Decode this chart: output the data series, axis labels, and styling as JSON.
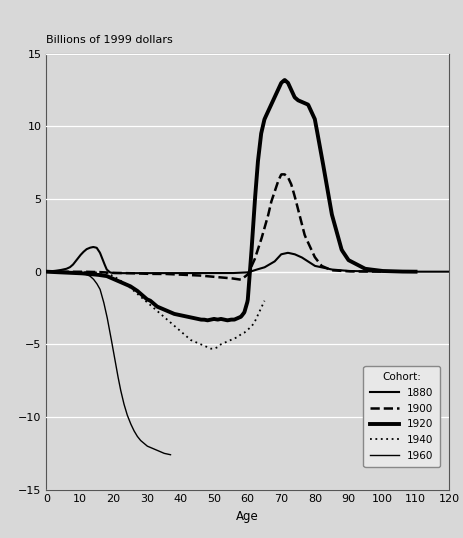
{
  "title": "Billions of 1999 dollars",
  "xlabel": "Age",
  "ylabel": "",
  "xlim": [
    0,
    120
  ],
  "ylim": [
    -15,
    15
  ],
  "xticks": [
    0,
    10,
    20,
    30,
    40,
    50,
    60,
    70,
    80,
    90,
    100,
    110,
    120
  ],
  "yticks": [
    -15,
    -10,
    -5,
    0,
    5,
    10,
    15
  ],
  "background_color": "#d8d8d8",
  "cohort_1880": {
    "ages": [
      0,
      1,
      2,
      3,
      4,
      5,
      6,
      7,
      8,
      9,
      10,
      11,
      12,
      13,
      14,
      15,
      16,
      17,
      18,
      19,
      20,
      22,
      25,
      28,
      30,
      35,
      40,
      45,
      50,
      55,
      60,
      62,
      65,
      68,
      70,
      72,
      74,
      76,
      78,
      80,
      85,
      90,
      95,
      100,
      105,
      110,
      115,
      120
    ],
    "values": [
      0,
      0.02,
      0.04,
      0.07,
      0.1,
      0.15,
      0.2,
      0.3,
      0.5,
      0.8,
      1.1,
      1.35,
      1.55,
      1.65,
      1.7,
      1.65,
      1.3,
      0.7,
      0.15,
      -0.05,
      -0.1,
      -0.1,
      -0.1,
      -0.1,
      -0.1,
      -0.1,
      -0.1,
      -0.1,
      -0.1,
      -0.1,
      -0.05,
      0.1,
      0.3,
      0.7,
      1.2,
      1.3,
      1.2,
      1.0,
      0.7,
      0.4,
      0.15,
      0.05,
      0.02,
      0.01,
      0,
      0,
      0,
      0
    ],
    "style": "solid",
    "linewidth": 1.5,
    "color": "#000000"
  },
  "cohort_1900": {
    "ages": [
      0,
      5,
      10,
      15,
      18,
      20,
      25,
      30,
      35,
      40,
      45,
      50,
      55,
      58,
      60,
      62,
      64,
      65,
      66,
      67,
      68,
      69,
      70,
      71,
      72,
      73,
      74,
      75,
      77,
      80,
      82,
      85,
      90,
      95,
      100,
      105,
      110
    ],
    "values": [
      0,
      0,
      0,
      -0.02,
      -0.05,
      -0.08,
      -0.1,
      -0.15,
      -0.15,
      -0.2,
      -0.25,
      -0.35,
      -0.45,
      -0.55,
      -0.2,
      0.8,
      2.2,
      3.0,
      3.8,
      4.8,
      5.5,
      6.2,
      6.7,
      6.7,
      6.5,
      6.0,
      5.2,
      4.3,
      2.5,
      1.0,
      0.4,
      0.1,
      0.02,
      0.01,
      0,
      0,
      0
    ],
    "style": "dashed",
    "linewidth": 1.8,
    "color": "#000000"
  },
  "cohort_1920": {
    "ages": [
      0,
      5,
      10,
      15,
      18,
      20,
      22,
      24,
      25,
      26,
      27,
      28,
      29,
      30,
      31,
      32,
      33,
      34,
      35,
      36,
      37,
      38,
      39,
      40,
      41,
      42,
      43,
      44,
      45,
      46,
      47,
      48,
      49,
      50,
      51,
      52,
      53,
      54,
      55,
      56,
      57,
      58,
      59,
      60,
      61,
      62,
      63,
      64,
      65,
      66,
      67,
      68,
      69,
      70,
      71,
      72,
      73,
      74,
      75,
      76,
      77,
      78,
      80,
      82,
      85,
      88,
      90,
      95,
      100,
      105,
      110
    ],
    "values": [
      0,
      -0.05,
      -0.1,
      -0.2,
      -0.3,
      -0.5,
      -0.7,
      -0.9,
      -1.0,
      -1.15,
      -1.3,
      -1.5,
      -1.7,
      -1.9,
      -2.0,
      -2.2,
      -2.4,
      -2.5,
      -2.6,
      -2.7,
      -2.8,
      -2.9,
      -2.95,
      -3.0,
      -3.05,
      -3.1,
      -3.15,
      -3.2,
      -3.25,
      -3.3,
      -3.3,
      -3.35,
      -3.3,
      -3.25,
      -3.3,
      -3.25,
      -3.3,
      -3.35,
      -3.3,
      -3.3,
      -3.2,
      -3.1,
      -2.8,
      -2.0,
      1.0,
      4.5,
      7.5,
      9.5,
      10.5,
      11.0,
      11.5,
      12.0,
      12.5,
      13.0,
      13.2,
      13.0,
      12.5,
      12.0,
      11.8,
      11.7,
      11.6,
      11.5,
      10.5,
      8.0,
      4.0,
      1.5,
      0.8,
      0.2,
      0.05,
      0.01,
      0
    ],
    "style": "solid",
    "linewidth": 2.8,
    "color": "#000000"
  },
  "cohort_1940": {
    "ages": [
      0,
      5,
      10,
      15,
      18,
      20,
      22,
      24,
      25,
      26,
      27,
      28,
      29,
      30,
      31,
      32,
      33,
      34,
      35,
      36,
      37,
      38,
      39,
      40,
      41,
      42,
      43,
      44,
      45,
      46,
      47,
      48,
      49,
      50,
      51,
      52,
      53,
      54,
      55,
      56,
      57,
      58,
      59,
      60,
      61,
      62,
      63,
      64,
      65
    ],
    "values": [
      0,
      0,
      -0.02,
      -0.05,
      -0.1,
      -0.3,
      -0.6,
      -0.9,
      -1.1,
      -1.3,
      -1.5,
      -1.7,
      -1.9,
      -2.1,
      -2.3,
      -2.5,
      -2.7,
      -2.9,
      -3.1,
      -3.3,
      -3.5,
      -3.7,
      -3.9,
      -4.1,
      -4.3,
      -4.5,
      -4.7,
      -4.8,
      -4.9,
      -5.0,
      -5.1,
      -5.2,
      -5.3,
      -5.3,
      -5.2,
      -5.0,
      -4.9,
      -4.8,
      -4.7,
      -4.6,
      -4.5,
      -4.3,
      -4.2,
      -4.0,
      -3.8,
      -3.5,
      -3.0,
      -2.5,
      -2.0
    ],
    "style": "dotted",
    "linewidth": 1.3,
    "color": "#000000"
  },
  "cohort_1960": {
    "ages": [
      0,
      2,
      5,
      8,
      10,
      11,
      12,
      13,
      14,
      15,
      16,
      17,
      18,
      19,
      20,
      21,
      22,
      23,
      24,
      25,
      26,
      27,
      28,
      29,
      30,
      31,
      32,
      33,
      34,
      35,
      36,
      37
    ],
    "values": [
      0,
      0,
      0,
      -0.03,
      -0.08,
      -0.12,
      -0.2,
      -0.3,
      -0.5,
      -0.8,
      -1.2,
      -2.0,
      -3.0,
      -4.2,
      -5.5,
      -6.8,
      -8.0,
      -9.0,
      -9.8,
      -10.4,
      -10.9,
      -11.3,
      -11.6,
      -11.8,
      -12.0,
      -12.1,
      -12.2,
      -12.3,
      -12.4,
      -12.5,
      -12.55,
      -12.6
    ],
    "style": "solid",
    "linewidth": 1.0,
    "color": "#000000"
  },
  "legend": {
    "title": "Cohort:",
    "entries": [
      "1880",
      "1900",
      "1920",
      "1940",
      "1960"
    ],
    "styles": [
      "solid",
      "dashed",
      "solid",
      "dotted",
      "solid"
    ],
    "linewidths": [
      1.5,
      1.8,
      2.8,
      1.3,
      1.0
    ]
  }
}
